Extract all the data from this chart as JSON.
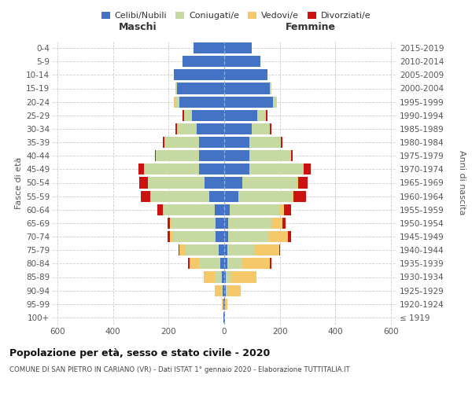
{
  "age_groups": [
    "100+",
    "95-99",
    "90-94",
    "85-89",
    "80-84",
    "75-79",
    "70-74",
    "65-69",
    "60-64",
    "55-59",
    "50-54",
    "45-49",
    "40-44",
    "35-39",
    "30-34",
    "25-29",
    "20-24",
    "15-19",
    "10-14",
    "5-9",
    "0-4"
  ],
  "birth_years": [
    "≤ 1919",
    "1920-1924",
    "1925-1929",
    "1930-1934",
    "1935-1939",
    "1940-1944",
    "1945-1949",
    "1950-1954",
    "1955-1959",
    "1960-1964",
    "1965-1969",
    "1970-1974",
    "1975-1979",
    "1980-1984",
    "1985-1989",
    "1990-1994",
    "1995-1999",
    "2000-2004",
    "2005-2009",
    "2010-2014",
    "2015-2019"
  ],
  "colors": {
    "celibi": "#4472c4",
    "coniugati": "#c5d9a0",
    "vedovi": "#f5c96a",
    "divorziati": "#cc1111"
  },
  "maschi": {
    "celibi": [
      2,
      4,
      5,
      8,
      15,
      20,
      30,
      30,
      35,
      55,
      70,
      90,
      90,
      90,
      100,
      115,
      160,
      170,
      180,
      150,
      110
    ],
    "coniugati": [
      0,
      0,
      5,
      25,
      75,
      120,
      155,
      160,
      185,
      210,
      205,
      200,
      155,
      125,
      70,
      30,
      15,
      5,
      0,
      0,
      0
    ],
    "vedovi": [
      0,
      5,
      25,
      40,
      35,
      20,
      10,
      5,
      2,
      0,
      0,
      0,
      0,
      0,
      0,
      0,
      5,
      0,
      0,
      0,
      0
    ],
    "divorziati": [
      0,
      0,
      0,
      0,
      5,
      5,
      10,
      10,
      20,
      35,
      30,
      20,
      5,
      5,
      5,
      5,
      0,
      0,
      0,
      0,
      0
    ]
  },
  "femmine": {
    "nubili": [
      2,
      2,
      5,
      5,
      10,
      12,
      15,
      15,
      20,
      50,
      65,
      90,
      90,
      90,
      100,
      120,
      175,
      165,
      155,
      130,
      100
    ],
    "coniugate": [
      0,
      0,
      5,
      20,
      55,
      95,
      145,
      155,
      180,
      195,
      195,
      195,
      150,
      115,
      65,
      30,
      15,
      5,
      0,
      0,
      0
    ],
    "vedove": [
      0,
      10,
      50,
      90,
      100,
      90,
      70,
      40,
      15,
      5,
      5,
      0,
      0,
      0,
      0,
      0,
      0,
      0,
      0,
      0,
      0
    ],
    "divorziate": [
      0,
      0,
      0,
      0,
      5,
      5,
      10,
      10,
      25,
      45,
      35,
      25,
      5,
      5,
      5,
      5,
      0,
      0,
      0,
      0,
      0
    ]
  },
  "title": "Popolazione per età, sesso e stato civile - 2020",
  "subtitle": "COMUNE DI SAN PIETRO IN CARIANO (VR) - Dati ISTAT 1° gennaio 2020 - Elaborazione TUTTITALIA.IT",
  "maschi_label": "Maschi",
  "femmine_label": "Femmine",
  "ylabel_left": "Fasce di età",
  "ylabel_right": "Anni di nascita",
  "legend_labels": [
    "Celibi/Nubili",
    "Coniugati/e",
    "Vedovi/e",
    "Divorziati/e"
  ],
  "xlim": 620,
  "bg_color": "#ffffff"
}
